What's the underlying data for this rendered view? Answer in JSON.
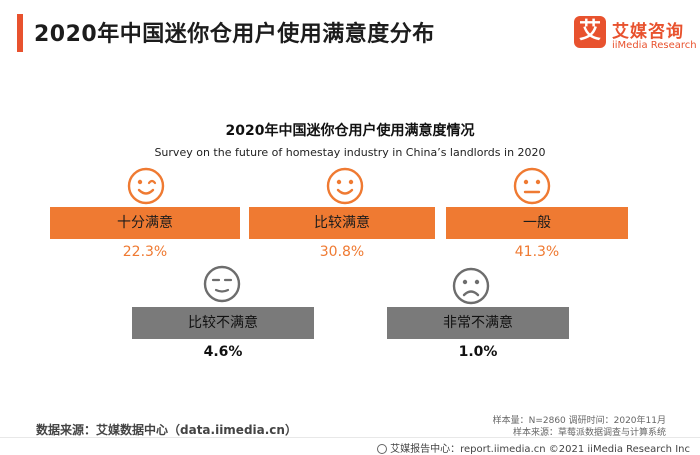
{
  "header": {
    "title": "2020年中国迷你仓用户使用满意度分布",
    "logo_mark": "艾",
    "logo_cn": "艾媒咨询",
    "logo_en": "iiMedia Research"
  },
  "chart_data": {
    "type": "table",
    "title": "2020年中国迷你仓用户使用满意度情况",
    "subtitle": "Survey on the future of homestay industry in China’s landlords in 2020",
    "categories": [
      "十分满意",
      "比较满意",
      "一般",
      "比较不满意",
      "非常不满意"
    ],
    "values": [
      22.3,
      30.8,
      41.3,
      4.6,
      1.0
    ],
    "value_labels": [
      "22.3%",
      "30.8%",
      "41.3%",
      "4.6%",
      "1.0%"
    ],
    "unit": "%",
    "icons": [
      "wink-face-icon",
      "smile-face-icon",
      "neutral-face-icon",
      "sleepy-face-icon",
      "frown-face-icon"
    ],
    "colors": {
      "satisfied": "#ef7a32",
      "unsatisfied": "#7a7a7a",
      "accent": "#e8522e"
    }
  },
  "footer": {
    "source": "数据来源：艾媒数据中心（data.iimedia.cn）",
    "sample": "样本量：N=2860    调研时间：2020年11月",
    "sample_source": "样本来源：草莓派数据调查与计算系统",
    "site": "艾媒报告中心：report.iimedia.cn  ©2021  iiMedia Research  Inc"
  }
}
